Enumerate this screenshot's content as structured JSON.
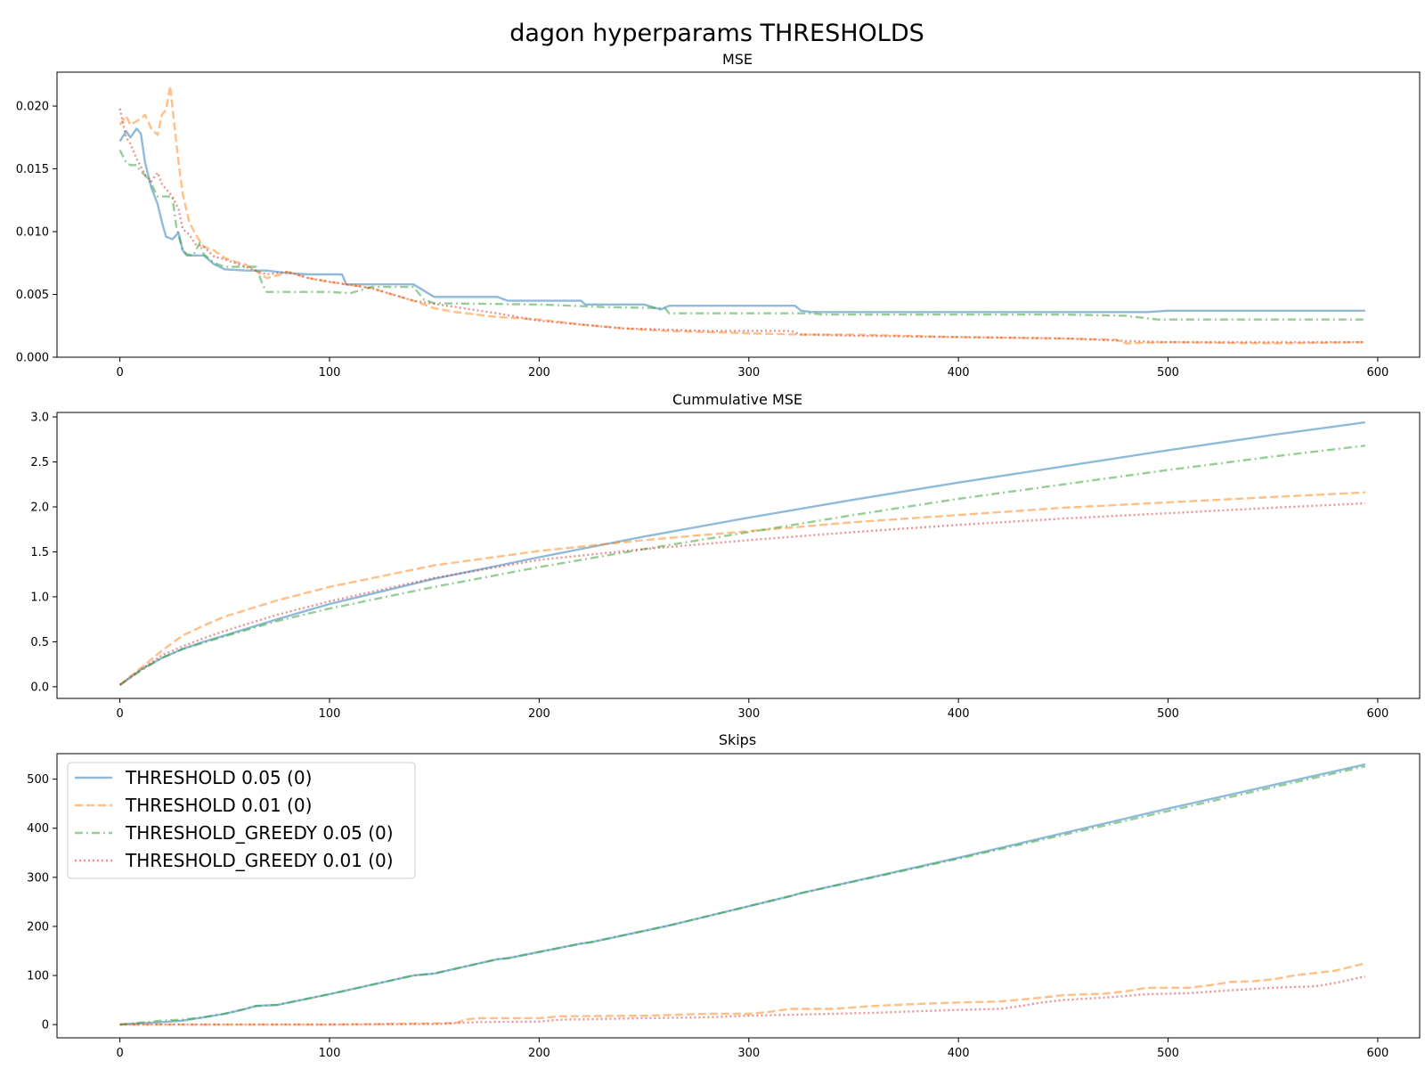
{
  "title": "dagon hyperparams  THRESHOLDS",
  "chart_data": [
    {
      "type": "line",
      "title": "MSE",
      "xlim": [
        -30,
        620
      ],
      "ylim": [
        0,
        0.0227
      ],
      "xticks": [
        0,
        100,
        200,
        300,
        400,
        500,
        600
      ],
      "xtick_labels": [
        "0",
        "100",
        "200",
        "300",
        "400",
        "500",
        "600"
      ],
      "yticks": [
        0,
        0.005,
        0.01,
        0.015,
        0.02
      ],
      "ytick_labels": [
        "0.000",
        "0.005",
        "0.010",
        "0.015",
        "0.020"
      ],
      "grid": false,
      "series": [
        {
          "name": "THRESHOLD 0.05 (0)",
          "color": "#1f77b4",
          "dash": "solid",
          "x": [
            0,
            3,
            5,
            8,
            10,
            12,
            15,
            18,
            20,
            22,
            25,
            28,
            30,
            32,
            35,
            40,
            45,
            50,
            60,
            70,
            80,
            90,
            100,
            106,
            108,
            120,
            140,
            145,
            150,
            160,
            175,
            180,
            185,
            200,
            220,
            222,
            240,
            250,
            258,
            262,
            280,
            300,
            322,
            325,
            330,
            335,
            350,
            400,
            450,
            490,
            500,
            550,
            594
          ],
          "y": [
            0.0172,
            0.018,
            0.0175,
            0.0182,
            0.0178,
            0.0155,
            0.0135,
            0.0122,
            0.0108,
            0.0096,
            0.0094,
            0.0099,
            0.0085,
            0.0081,
            0.0081,
            0.0081,
            0.0074,
            0.007,
            0.0069,
            0.0069,
            0.0067,
            0.0066,
            0.0066,
            0.0066,
            0.0058,
            0.0058,
            0.0058,
            0.0053,
            0.0048,
            0.0048,
            0.0048,
            0.0048,
            0.0045,
            0.0045,
            0.0045,
            0.0042,
            0.0042,
            0.0042,
            0.0038,
            0.0041,
            0.0041,
            0.0041,
            0.0041,
            0.0037,
            0.0036,
            0.0036,
            0.0036,
            0.0036,
            0.0036,
            0.0036,
            0.0037,
            0.0037,
            0.0037
          ]
        },
        {
          "name": "THRESHOLD 0.01 (0)",
          "color": "#ff7f0e",
          "dash": "dashed",
          "x": [
            0,
            3,
            5,
            8,
            10,
            12,
            15,
            18,
            20,
            22,
            24,
            26,
            28,
            30,
            33,
            36,
            40,
            45,
            50,
            55,
            60,
            70,
            75,
            80,
            90,
            100,
            120,
            140,
            150,
            160,
            170,
            180,
            200,
            220,
            240,
            260,
            280,
            300,
            325,
            350,
            400,
            450,
            475,
            480,
            500,
            550,
            594
          ],
          "y": [
            0.0185,
            0.0192,
            0.0185,
            0.0188,
            0.019,
            0.0193,
            0.0182,
            0.0177,
            0.0193,
            0.0197,
            0.0216,
            0.0185,
            0.0155,
            0.013,
            0.0108,
            0.0098,
            0.0088,
            0.0085,
            0.0079,
            0.0076,
            0.0074,
            0.0063,
            0.0065,
            0.0068,
            0.0063,
            0.006,
            0.0055,
            0.0045,
            0.0039,
            0.0036,
            0.0034,
            0.0032,
            0.003,
            0.0026,
            0.0023,
            0.0021,
            0.002,
            0.0019,
            0.0018,
            0.0018,
            0.0016,
            0.0015,
            0.0014,
            0.0011,
            0.0012,
            0.0011,
            0.0012
          ]
        },
        {
          "name": "THRESHOLD_GREEDY 0.05 (0)",
          "color": "#2ca02c",
          "dash": "dashdot",
          "x": [
            0,
            3,
            5,
            8,
            10,
            12,
            15,
            18,
            20,
            25,
            27,
            30,
            32,
            35,
            38,
            40,
            45,
            50,
            55,
            60,
            65,
            68,
            70,
            75,
            90,
            100,
            110,
            120,
            130,
            140,
            145,
            150,
            200,
            230,
            260,
            262,
            300,
            330,
            335,
            400,
            450,
            480,
            490,
            495,
            594
          ],
          "y": [
            0.0165,
            0.0155,
            0.0153,
            0.0153,
            0.0148,
            0.0145,
            0.0138,
            0.0128,
            0.0128,
            0.0128,
            0.0103,
            0.0085,
            0.0082,
            0.0081,
            0.0091,
            0.0082,
            0.0075,
            0.0072,
            0.0072,
            0.0072,
            0.0072,
            0.0058,
            0.0052,
            0.0052,
            0.0052,
            0.0052,
            0.0051,
            0.0056,
            0.0056,
            0.0056,
            0.0046,
            0.0043,
            0.0042,
            0.004,
            0.0039,
            0.0035,
            0.0035,
            0.0035,
            0.0034,
            0.0034,
            0.0034,
            0.0033,
            0.0031,
            0.003,
            0.003
          ]
        },
        {
          "name": "THRESHOLD_GREEDY 0.01 (0)",
          "color": "#d62728",
          "dash": "dotted",
          "x": [
            0,
            3,
            5,
            8,
            10,
            12,
            15,
            18,
            20,
            23,
            25,
            28,
            30,
            33,
            36,
            40,
            45,
            50,
            60,
            70,
            80,
            90,
            100,
            120,
            140,
            160,
            180,
            200,
            220,
            240,
            260,
            280,
            300,
            320,
            325,
            330,
            350,
            400,
            450,
            480,
            500,
            550,
            594
          ],
          "y": [
            0.0198,
            0.0175,
            0.017,
            0.0158,
            0.0152,
            0.0145,
            0.014,
            0.0147,
            0.0138,
            0.0132,
            0.0128,
            0.0118,
            0.0102,
            0.0098,
            0.009,
            0.0088,
            0.008,
            0.0078,
            0.0072,
            0.0066,
            0.0068,
            0.0063,
            0.006,
            0.0055,
            0.0045,
            0.004,
            0.0035,
            0.0029,
            0.0026,
            0.0023,
            0.0022,
            0.0021,
            0.0021,
            0.0021,
            0.0018,
            0.0018,
            0.0017,
            0.0016,
            0.0015,
            0.0013,
            0.0012,
            0.0012,
            0.0012
          ]
        }
      ]
    },
    {
      "type": "line",
      "title": "Cummulative MSE",
      "xlim": [
        -30,
        620
      ],
      "ylim": [
        -0.13,
        3.05
      ],
      "xticks": [
        0,
        100,
        200,
        300,
        400,
        500,
        600
      ],
      "xtick_labels": [
        "0",
        "100",
        "200",
        "300",
        "400",
        "500",
        "600"
      ],
      "yticks": [
        0,
        0.5,
        1,
        1.5,
        2,
        2.5,
        3
      ],
      "ytick_labels": [
        "0.0",
        "0.5",
        "1.0",
        "1.5",
        "2.0",
        "2.5",
        "3.0"
      ],
      "grid": false,
      "series": [
        {
          "name": "THRESHOLD 0.05 (0)",
          "color": "#1f77b4",
          "dash": "solid",
          "x": [
            0,
            10,
            20,
            30,
            40,
            50,
            75,
            100,
            150,
            200,
            250,
            300,
            350,
            400,
            450,
            500,
            550,
            594
          ],
          "y": [
            0.02,
            0.19,
            0.32,
            0.42,
            0.5,
            0.57,
            0.75,
            0.92,
            1.2,
            1.44,
            1.67,
            1.88,
            2.08,
            2.27,
            2.45,
            2.63,
            2.8,
            2.94
          ]
        },
        {
          "name": "THRESHOLD 0.01 (0)",
          "color": "#ff7f0e",
          "dash": "dashed",
          "x": [
            0,
            10,
            20,
            30,
            40,
            50,
            75,
            100,
            150,
            200,
            250,
            300,
            350,
            400,
            450,
            500,
            550,
            594
          ],
          "y": [
            0.02,
            0.21,
            0.4,
            0.57,
            0.68,
            0.78,
            0.96,
            1.11,
            1.35,
            1.51,
            1.63,
            1.73,
            1.83,
            1.91,
            1.99,
            2.05,
            2.11,
            2.16
          ]
        },
        {
          "name": "THRESHOLD_GREEDY 0.05 (0)",
          "color": "#2ca02c",
          "dash": "dashdot",
          "x": [
            0,
            10,
            20,
            30,
            40,
            50,
            75,
            100,
            150,
            200,
            250,
            300,
            350,
            400,
            450,
            500,
            550,
            594
          ],
          "y": [
            0.02,
            0.18,
            0.32,
            0.42,
            0.49,
            0.56,
            0.73,
            0.87,
            1.11,
            1.33,
            1.53,
            1.72,
            1.91,
            2.09,
            2.25,
            2.41,
            2.56,
            2.68
          ]
        },
        {
          "name": "THRESHOLD_GREEDY 0.01 (0)",
          "color": "#d62728",
          "dash": "dotted",
          "x": [
            0,
            10,
            20,
            30,
            40,
            50,
            75,
            100,
            150,
            200,
            250,
            300,
            350,
            400,
            450,
            500,
            550,
            594
          ],
          "y": [
            0.02,
            0.19,
            0.35,
            0.45,
            0.54,
            0.62,
            0.8,
            0.95,
            1.21,
            1.41,
            1.53,
            1.63,
            1.72,
            1.8,
            1.87,
            1.93,
            1.99,
            2.04
          ]
        }
      ]
    },
    {
      "type": "line",
      "title": "Skips",
      "xlim": [
        -30,
        620
      ],
      "ylim": [
        -27,
        552
      ],
      "xticks": [
        0,
        100,
        200,
        300,
        400,
        500,
        600
      ],
      "xtick_labels": [
        "0",
        "100",
        "200",
        "300",
        "400",
        "500",
        "600"
      ],
      "yticks": [
        0,
        100,
        200,
        300,
        400,
        500
      ],
      "ytick_labels": [
        "0",
        "100",
        "200",
        "300",
        "400",
        "500"
      ],
      "grid": false,
      "legend": "upper-left",
      "series": [
        {
          "name": "THRESHOLD 0.05 (0)",
          "color": "#1f77b4",
          "dash": "solid",
          "x": [
            0,
            20,
            30,
            40,
            50,
            60,
            65,
            75,
            100,
            140,
            150,
            180,
            185,
            220,
            225,
            260,
            265,
            320,
            325,
            400,
            500,
            594
          ],
          "y": [
            0,
            5,
            8,
            15,
            22,
            32,
            38,
            40,
            62,
            100,
            104,
            133,
            135,
            165,
            168,
            200,
            205,
            262,
            268,
            340,
            440,
            530
          ]
        },
        {
          "name": "THRESHOLD 0.01 (0)",
          "color": "#ff7f0e",
          "dash": "dashed",
          "x": [
            0,
            100,
            140,
            160,
            165,
            170,
            200,
            210,
            250,
            280,
            300,
            310,
            320,
            340,
            350,
            360,
            380,
            400,
            420,
            440,
            450,
            470,
            480,
            490,
            510,
            520,
            530,
            540,
            550,
            560,
            580,
            594
          ],
          "y": [
            0,
            0,
            2,
            3,
            10,
            13,
            13,
            17,
            18,
            22,
            22,
            26,
            32,
            32,
            35,
            38,
            42,
            45,
            47,
            55,
            60,
            63,
            68,
            75,
            75,
            80,
            87,
            88,
            92,
            100,
            110,
            125
          ]
        },
        {
          "name": "THRESHOLD_GREEDY 0.05 (0)",
          "color": "#2ca02c",
          "dash": "dashdot",
          "x": [
            0,
            20,
            30,
            40,
            50,
            60,
            65,
            75,
            100,
            140,
            150,
            180,
            185,
            220,
            225,
            260,
            265,
            320,
            325,
            400,
            500,
            594
          ],
          "y": [
            0,
            8,
            10,
            15,
            22,
            32,
            38,
            40,
            62,
            100,
            104,
            133,
            135,
            165,
            168,
            200,
            205,
            262,
            268,
            338,
            435,
            526
          ]
        },
        {
          "name": "THRESHOLD_GREEDY 0.01 (0)",
          "color": "#d62728",
          "dash": "dotted",
          "x": [
            0,
            100,
            150,
            170,
            200,
            210,
            250,
            280,
            300,
            320,
            340,
            360,
            380,
            400,
            420,
            430,
            440,
            450,
            470,
            490,
            510,
            530,
            550,
            570,
            580,
            594
          ],
          "y": [
            0,
            0,
            1,
            5,
            6,
            10,
            13,
            15,
            18,
            20,
            22,
            24,
            27,
            30,
            32,
            38,
            45,
            50,
            55,
            62,
            64,
            70,
            75,
            78,
            85,
            98
          ]
        }
      ]
    }
  ]
}
